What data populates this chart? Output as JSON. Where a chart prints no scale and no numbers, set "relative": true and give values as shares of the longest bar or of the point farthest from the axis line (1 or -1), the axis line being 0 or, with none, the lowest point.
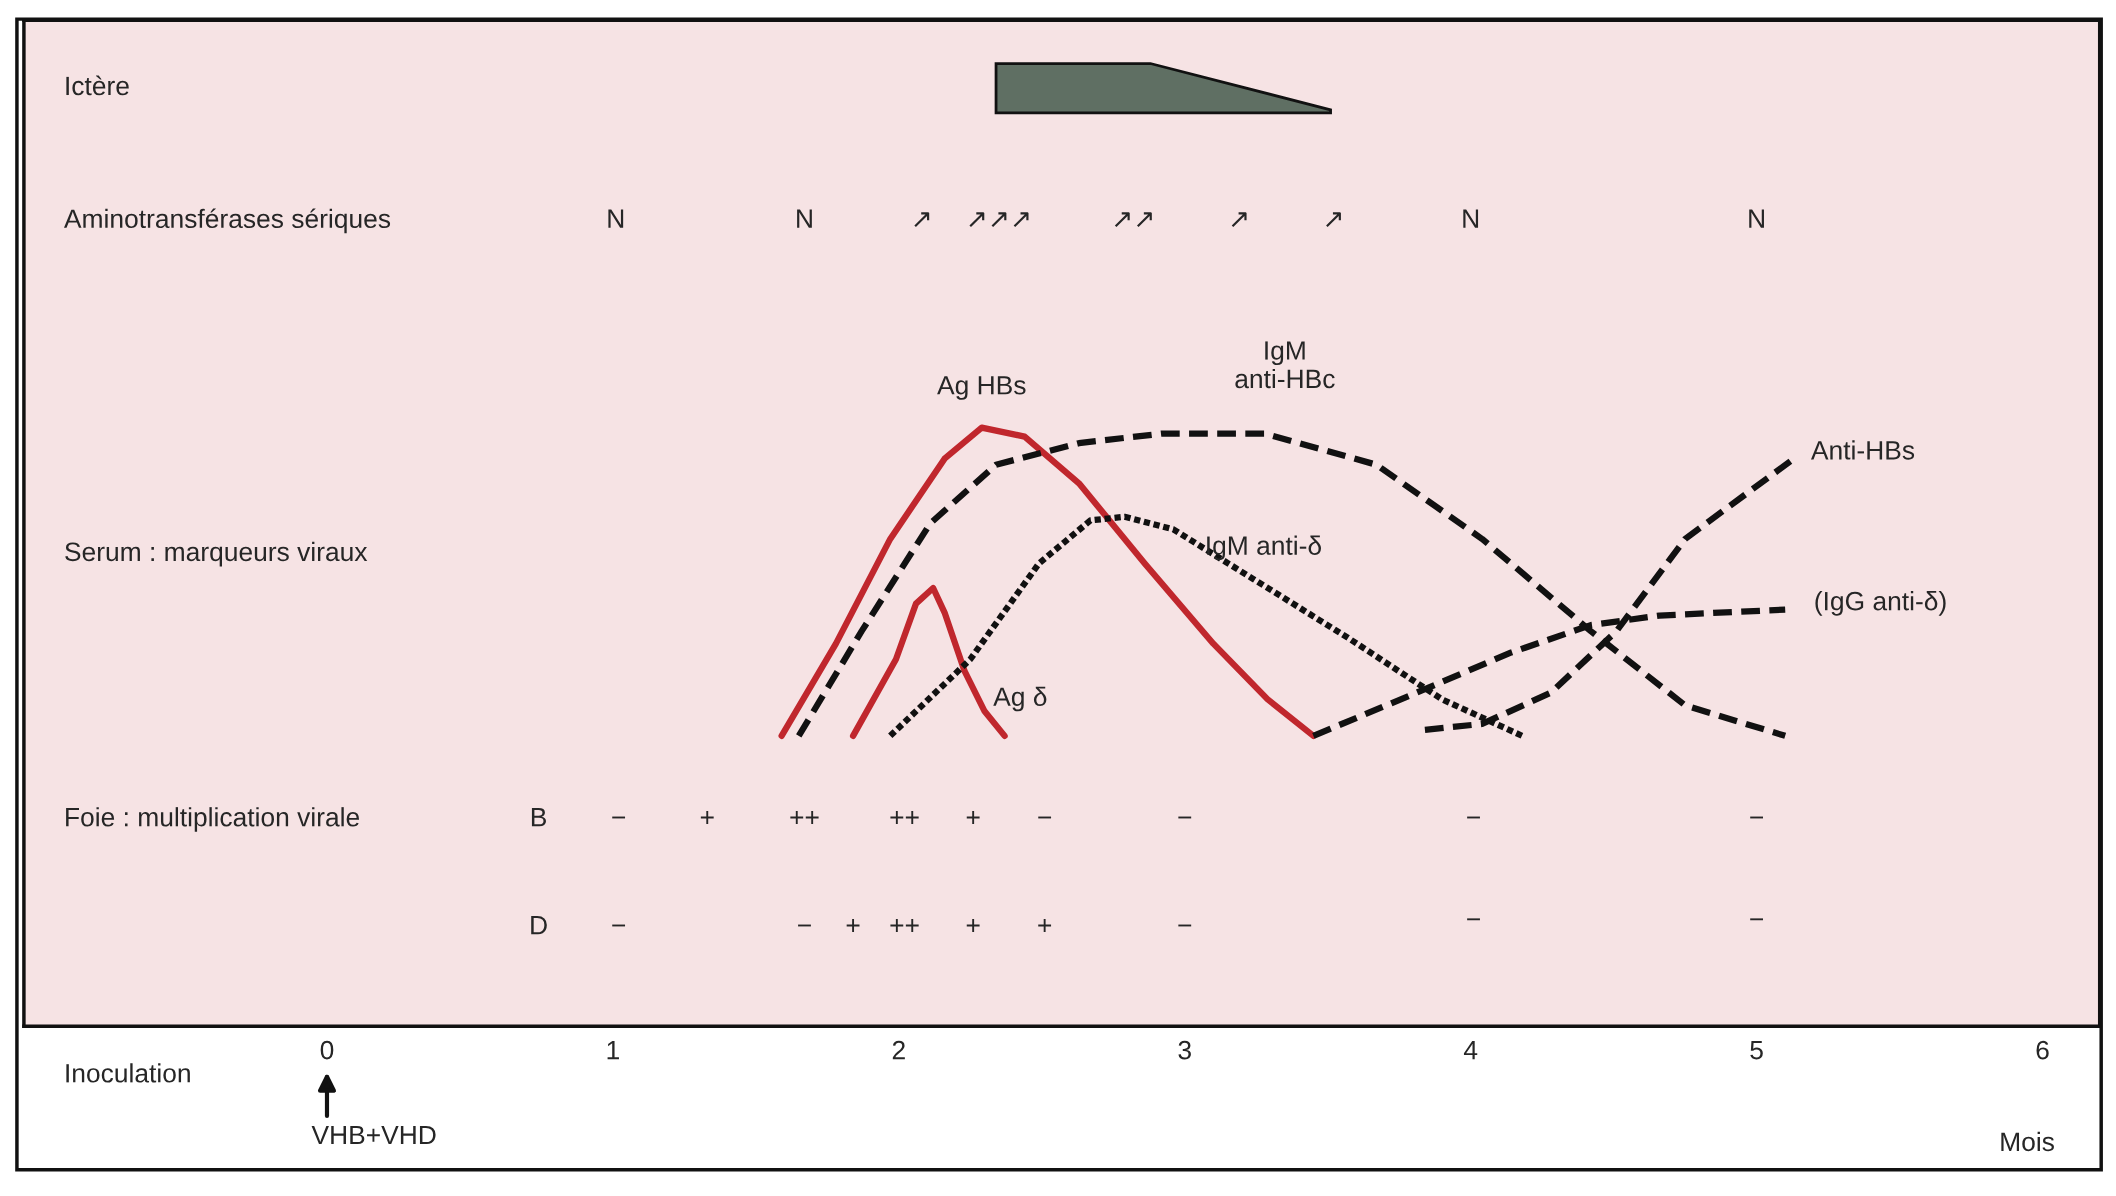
{
  "chart_data": {
    "type": "line",
    "relative": true,
    "xlabel": "Mois",
    "xlim": [
      -1.06,
      6.2
    ],
    "xticks": [
      0,
      1,
      2,
      3,
      4,
      5,
      6
    ],
    "tick_labels": "x",
    "grid": false,
    "legend": false,
    "marker": "none",
    "series": [
      {
        "color": "#c0272d",
        "line_style": "solid",
        "x": [
          1.59,
          1.78,
          1.97,
          2.16,
          2.29,
          2.44,
          2.63,
          2.86,
          3.1,
          3.29,
          3.45
        ],
        "values": [
          0.485,
          0.639,
          0.814,
          0.948,
          1.0,
          0.985,
          0.907,
          0.773,
          0.639,
          0.546,
          0.485
        ]
      },
      {
        "color": "#c0272d",
        "line_style": "solid",
        "x": [
          1.84,
          1.99,
          2.06,
          2.12,
          2.16,
          2.23,
          2.3,
          2.37
        ],
        "values": [
          0.485,
          0.613,
          0.706,
          0.732,
          0.691,
          0.593,
          0.526,
          0.485
        ]
      },
      {
        "color": "#111111",
        "line_style": "dashed",
        "x": [
          1.65,
          1.87,
          2.11,
          2.34,
          2.63,
          2.92,
          3.28,
          3.67,
          4.04,
          4.42,
          4.75,
          5.1
        ],
        "values": [
          0.485,
          0.66,
          0.84,
          0.938,
          0.974,
          0.99,
          0.99,
          0.938,
          0.814,
          0.66,
          0.536,
          0.485
        ]
      },
      {
        "color": "#111111",
        "line_style": "dotted",
        "x": [
          1.97,
          2.25,
          2.49,
          2.67,
          2.79,
          2.96,
          3.24,
          3.57,
          3.9,
          4.18
        ],
        "values": [
          0.485,
          0.613,
          0.773,
          0.845,
          0.851,
          0.83,
          0.747,
          0.649,
          0.546,
          0.485
        ]
      },
      {
        "color": "#111111",
        "line_style": "dashed",
        "x": [
          3.45,
          3.81,
          4.14,
          4.42,
          4.66,
          5.1
        ],
        "values": [
          0.485,
          0.557,
          0.624,
          0.67,
          0.686,
          0.696
        ]
      },
      {
        "color": "#111111",
        "line_style": "dashed",
        "x": [
          3.84,
          4.04,
          4.28,
          4.51,
          4.75,
          5.13
        ],
        "values": [
          0.495,
          0.505,
          0.557,
          0.66,
          0.814,
          0.948
        ]
      }
    ],
    "annotations": [
      "Ictère",
      "Aminotransférases sériques",
      "Serum : marqueurs viraux",
      "Foie : multiplication virale",
      "Inoculation",
      "VHB+VHD",
      "N",
      "N",
      "↗",
      "↗↗↗",
      "↗↗",
      "↗",
      "↗",
      "N",
      "N",
      "B",
      "−",
      "+",
      "++",
      "++",
      "+",
      "−",
      "−",
      "−",
      "−",
      "D",
      "−",
      "−",
      "+",
      "++",
      "+",
      "+",
      "−",
      "−",
      "−",
      {
        "text": "Ag HBs",
        "x": 2.29,
        "y": 1.0
      },
      {
        "text": "IgM\nanti-HBc",
        "x": 3.28,
        "y": 0.99
      },
      {
        "text": "IgM anti-δ",
        "x": 2.96,
        "y": 0.83
      },
      {
        "text": "Ag δ",
        "x": 2.23,
        "y": 0.593
      },
      {
        "text": "Anti-HBs",
        "x": 5.13,
        "y": 0.948
      },
      {
        "text": "(IgG anti-δ)",
        "x": 5.1,
        "y": 0.696
      }
    ]
  }
}
